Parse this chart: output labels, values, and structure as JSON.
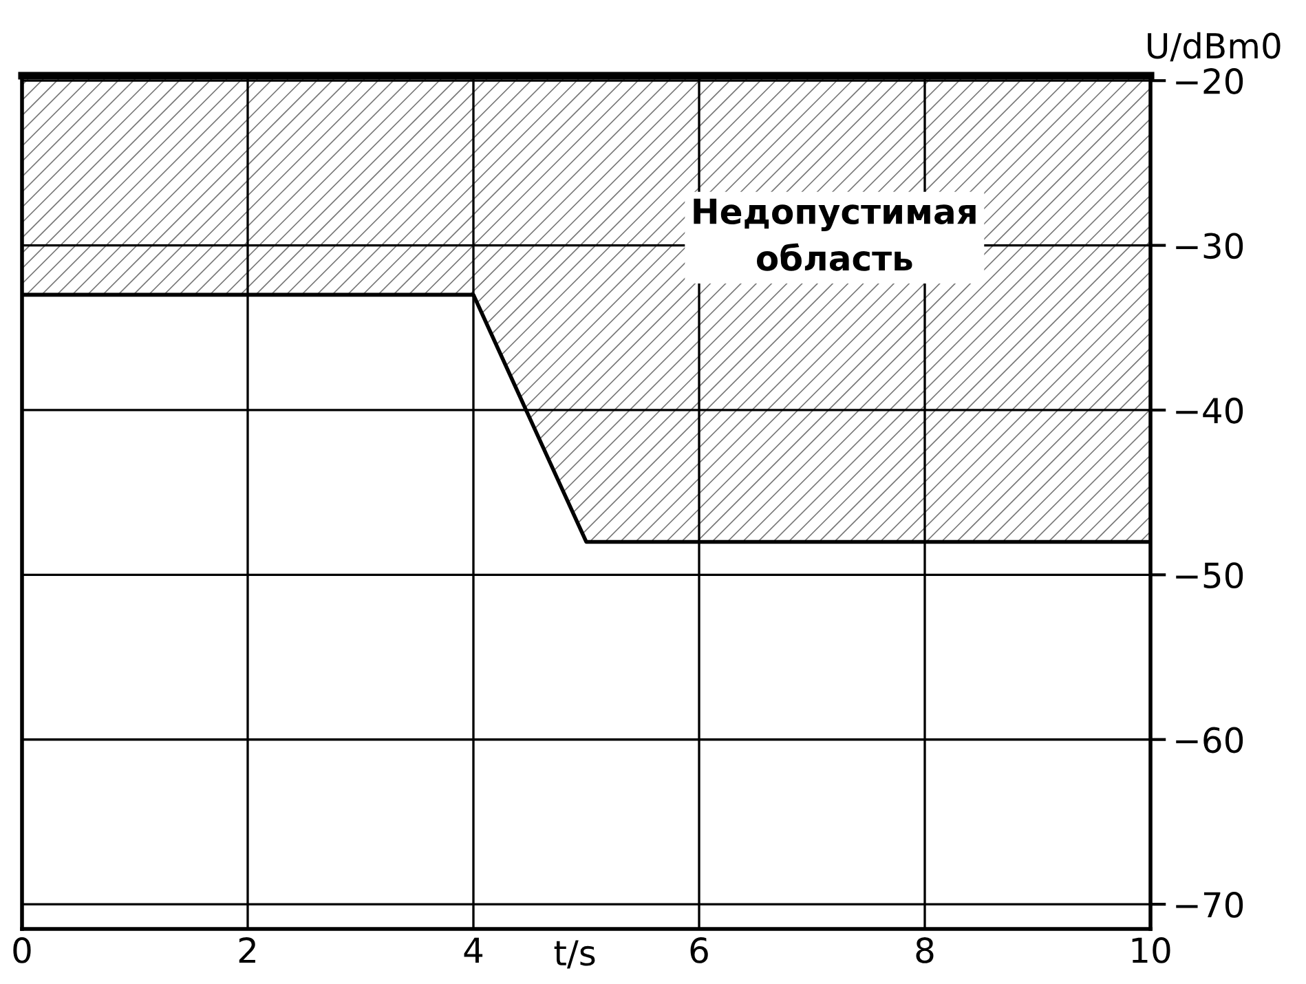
{
  "chart_data": {
    "type": "area",
    "xlabel": "t/s",
    "ylabel": "U/dBm0",
    "x": [
      0,
      4,
      5,
      10
    ],
    "series": [
      {
        "color": "#000000",
        "values": [
          -33,
          -33,
          -48,
          -48
        ]
      }
    ],
    "xlim": [
      0,
      10
    ],
    "xticks": [
      0,
      2,
      4,
      6,
      8,
      10
    ],
    "ylim": [
      -71.5,
      -19.7
    ],
    "yticks": [
      -20,
      -30,
      -40,
      -50,
      -60,
      -70
    ],
    "grid": true,
    "legend": false,
    "annotations": [
      "Недопустимая\nобласть"
    ]
  }
}
